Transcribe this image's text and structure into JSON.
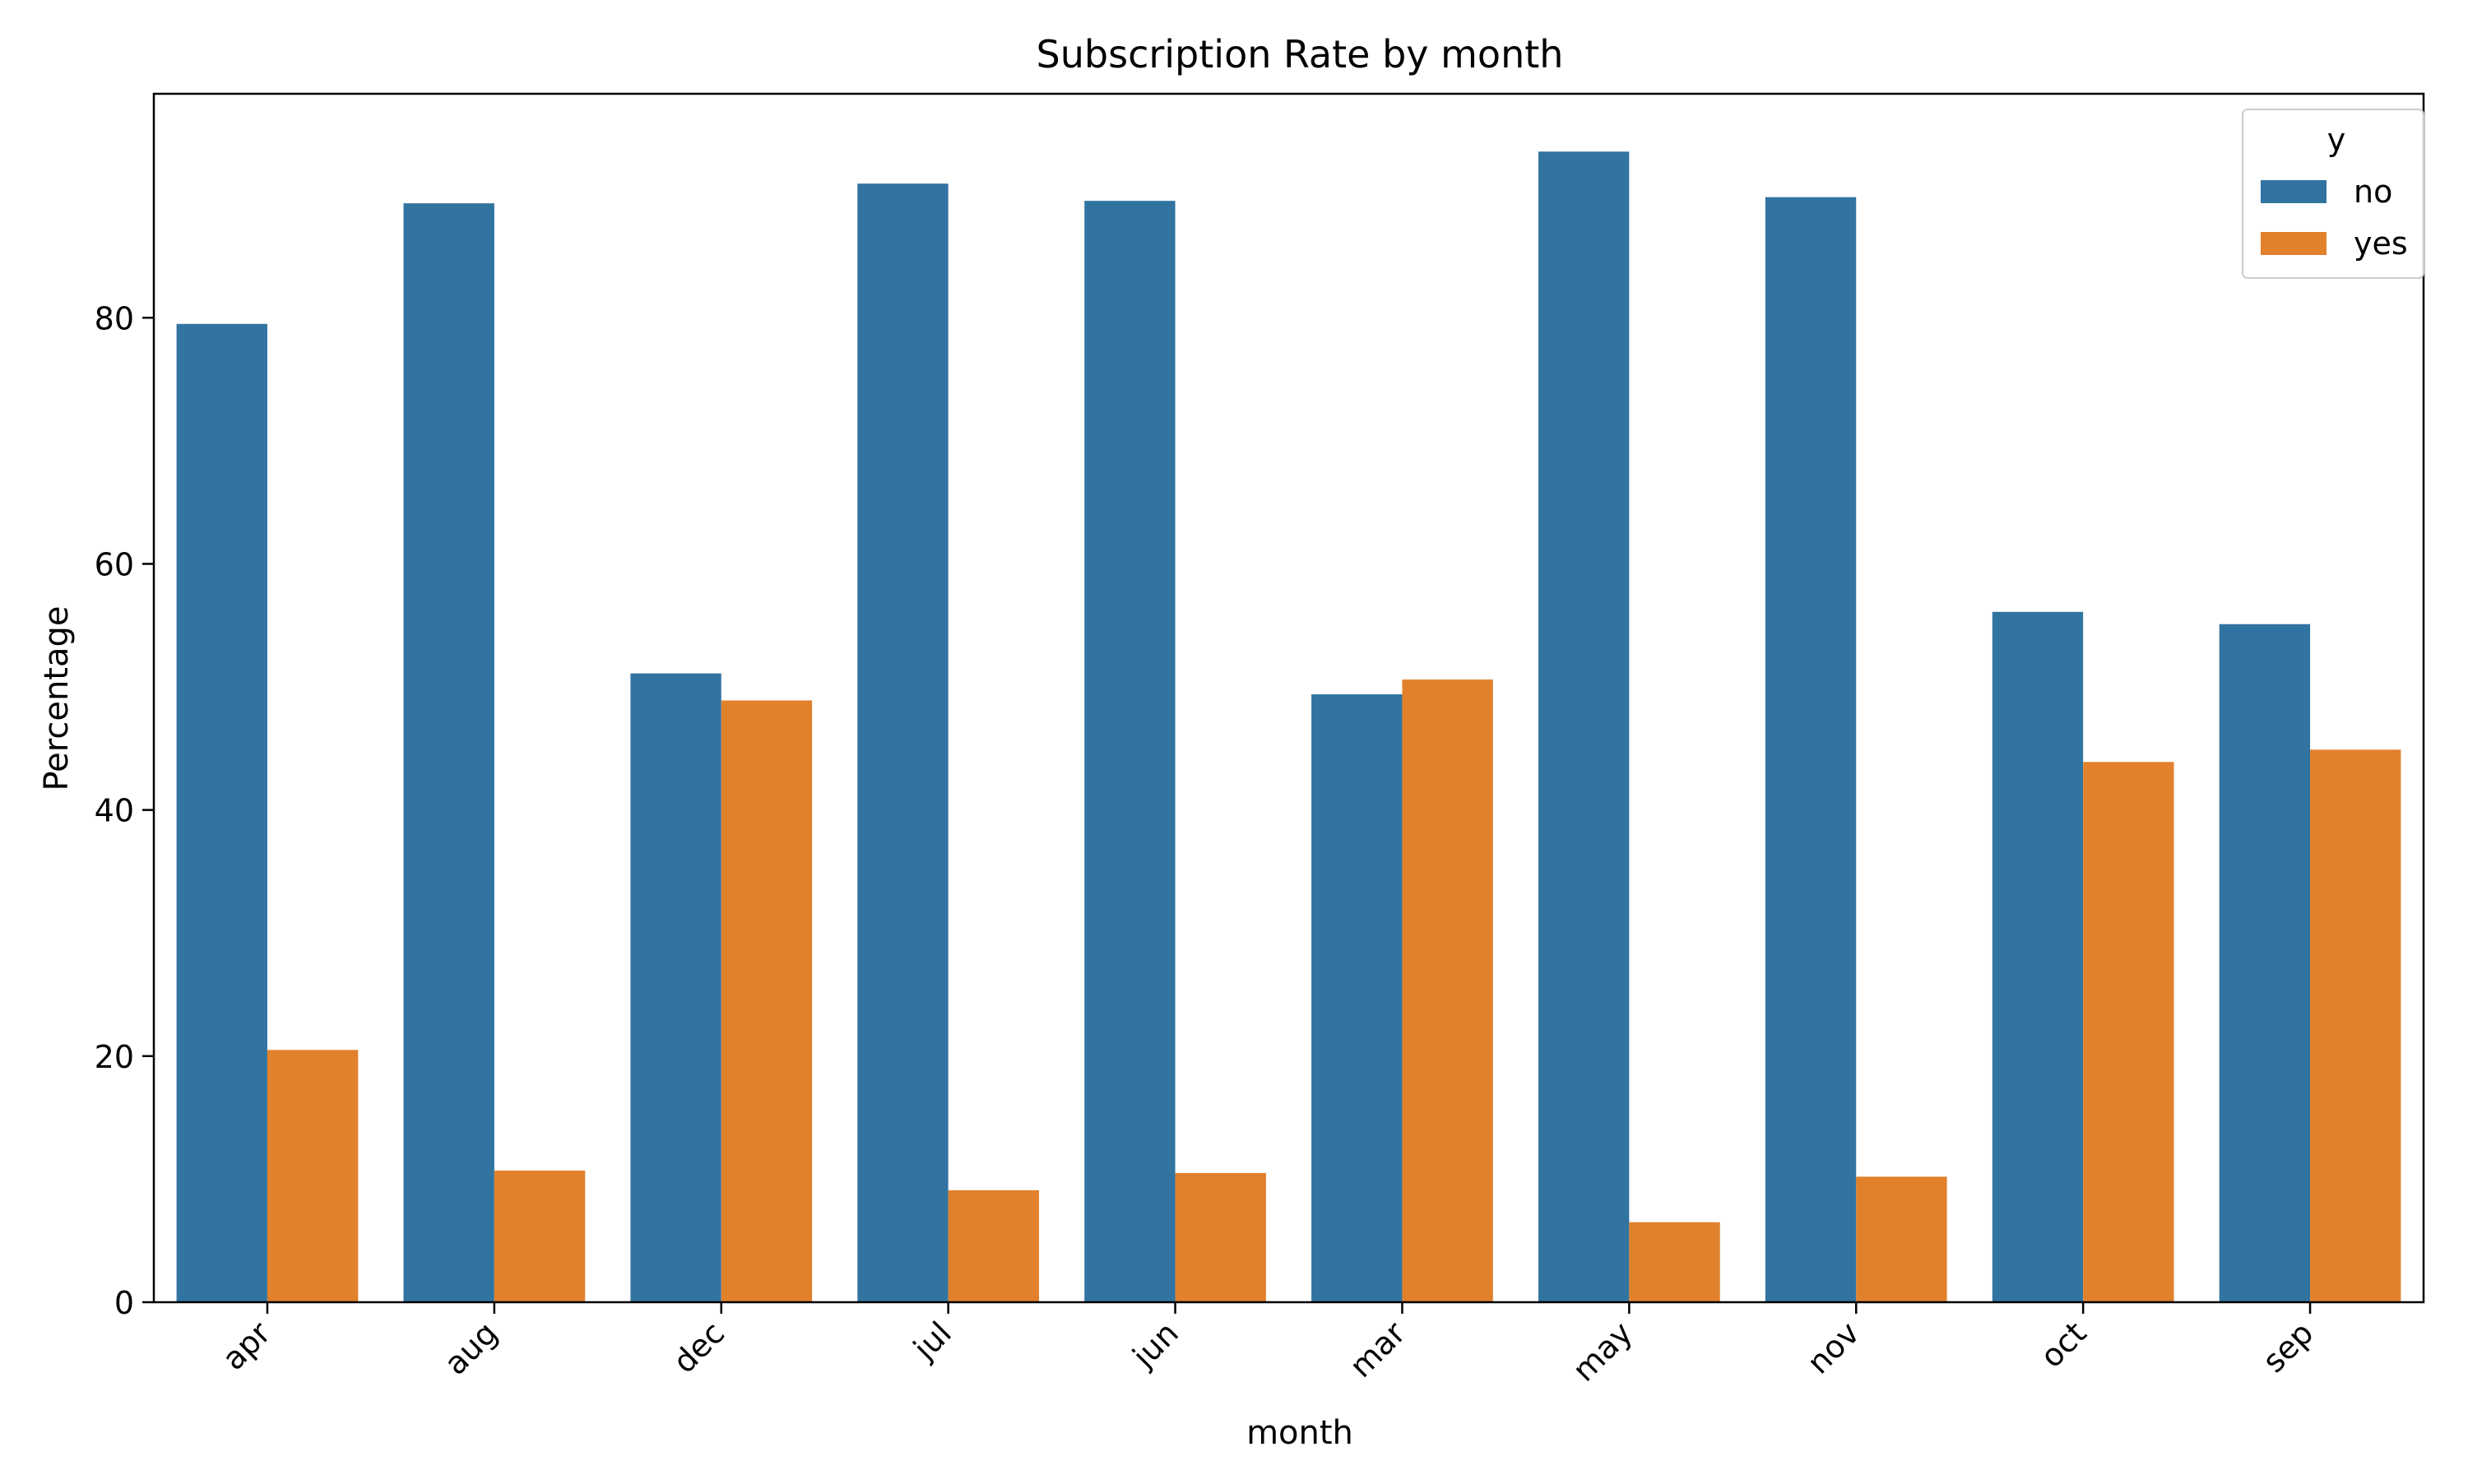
{
  "chart_data": {
    "type": "bar",
    "title": "Subscription Rate by month",
    "xlabel": "month",
    "ylabel": "Percentage",
    "categories": [
      "apr",
      "aug",
      "dec",
      "jul",
      "jun",
      "mar",
      "may",
      "nov",
      "oct",
      "sep"
    ],
    "series": [
      {
        "name": "no",
        "color": "#3274a1",
        "values": [
          79.5,
          89.3,
          51.1,
          90.9,
          89.5,
          49.4,
          93.5,
          89.8,
          56.1,
          55.1
        ]
      },
      {
        "name": "yes",
        "color": "#e1812c",
        "values": [
          20.5,
          10.7,
          48.9,
          9.1,
          10.5,
          50.6,
          6.5,
          10.2,
          43.9,
          44.9
        ]
      }
    ],
    "yticks": [
      0,
      20,
      40,
      60,
      80
    ],
    "ylim": [
      0,
      98.2
    ],
    "grid": false,
    "legend": {
      "title": "y",
      "placement": "top-right"
    }
  }
}
